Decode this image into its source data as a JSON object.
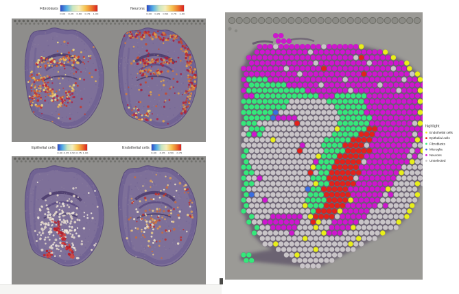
{
  "palette": {
    "left_block_bg": "#8e8d8b",
    "right_block_bg": "#9b9a96",
    "tissue_purple": "#7e7099",
    "fiducial_dot": "#6d6d66",
    "bottom_strip": "#f5f5f3"
  },
  "left_panels": {
    "colormap_stops": [
      "#2b47c6",
      "#53aee6",
      "#c8e6c0",
      "#f5eebb",
      "#f7c653",
      "#ee7d2e",
      "#d92120"
    ],
    "value_range": [
      0,
      1
    ],
    "panels": [
      {
        "title": "Fibroblasts",
        "colorbar_ticks": [
          "0.00",
          "0.25",
          "0.50",
          "0.75",
          "1.00"
        ]
      },
      {
        "title": "Neurons",
        "colorbar_ticks": [
          "0.00",
          "0.25",
          "0.50",
          "0.75",
          "1.00"
        ]
      },
      {
        "title": "Epithelial cells",
        "colorbar_ticks": [
          "0.00",
          "0.25",
          "0.50",
          "0.75",
          "1.00"
        ]
      },
      {
        "title": "Endothelial cells",
        "colorbar_ticks": [
          "0.00",
          "0.25",
          "0.50",
          "0.75"
        ]
      }
    ]
  },
  "right_panel": {
    "legend": {
      "title": "highlight",
      "items": [
        {
          "label": "Endothelial cells",
          "color": "#e8ef1a"
        },
        {
          "label": "Epithelial cells",
          "color": "#e4211a"
        },
        {
          "label": "Fibroblasts",
          "color": "#35e87b"
        },
        {
          "label": "Microglia",
          "color": "#3a6de0"
        },
        {
          "label": "Neurons",
          "color": "#cf16cf"
        },
        {
          "label": "Unselected",
          "color": "#c9c5c8"
        }
      ]
    }
  },
  "chart_data": [
    {
      "type": "heatmap",
      "subtype": "spatial_feature_overlay_panels",
      "title": "",
      "panels": [
        "Fibroblasts",
        "Neurons",
        "Epithelial cells",
        "Endothelial cells"
      ],
      "colorbar_ticks": [
        [
          "0.00",
          "0.25",
          "0.50",
          "0.75",
          "1.00"
        ],
        [
          "0.00",
          "0.25",
          "0.50",
          "0.75",
          "1.00"
        ],
        [
          "0.00",
          "0.25",
          "0.50",
          "0.75",
          "1.00"
        ],
        [
          "0.00",
          "0.25",
          "0.50",
          "0.75"
        ]
      ],
      "colormap_stops": [
        "#2b47c6",
        "#53aee6",
        "#c8e6c0",
        "#f5eebb",
        "#f7c653",
        "#ee7d2e",
        "#d92120"
      ],
      "value_range": [
        0,
        1
      ],
      "legend_position": "top"
    },
    {
      "type": "scatter",
      "subtype": "spatial_spot_category_map",
      "legend_title": "highlight",
      "legend_position": "right",
      "grid_on": false,
      "category_codes": {
        "n": "Neurons",
        "f": "Fibroblasts",
        "e": "Epithelial cells",
        "d": "Endothelial cells",
        "m": "Microglia",
        "u": "Unselected",
        ".": "empty"
      },
      "category_colors": {
        "n": "#cf16cf",
        "f": "#35e87b",
        "e": "#e4211a",
        "d": "#e8ef1a",
        "m": "#3a6de0",
        "u": "#c9c5c8"
      },
      "grid_rows": [
        "......nn..........................",
        "......nnn.........................",
        "...nnnunnnnnnnnunnnnnnd...........",
        "..nnnnnnnnnnunnnnnnnnnnnnnd.......",
        ".nnnnnnnnnnnnnnnnnnnnuennnnnd.....",
        ".nnnnnnnnnnnnunnnnnnnnnunnnnnnd...",
        "nnnnnnnnunnnnnnennnnnnnnnnnnunnd..",
        "nnnnnnnnnnunnnnnnnnnnnennnnnnnnud.",
        "nffffnnnnnnnnnnnnnnunnnnnnnnnnunnd",
        "nfffffffnnnnnnunnnnnnnnnnunnnnnnnn",
        "nfffffffffffnnnnnnnnunnnnnnnnunnnd",
        "nnffffffffffffnnnffffffnnnnnnnnnnn",
        "fffffffffuuuuuuufffffffnnnnnnnnnnd",
        "ffffffffuuuuuuuuuffffffnnnnnnnnnnn",
        "ffffffmuuuuuuuuuuufffffnnnnnnnnnnd",
        "fffffmnnnnuuuuuuuuffffffnnnnnnnnnn",
        "fffuuuuuuueuuuuuuuffffffnnnnnnnnud",
        "ufffuuuuuuuuuuuuudfffffeennnnnnnnn",
        "ufnfuuuuuuuuuuuuufffffeeennnnnnnun",
        "uuuuuduuuuuuuuufffffeeeennnnnnnndn",
        "uuuuuuuuuuunuuuffffeeeeunnnnnnnnuu",
        "fuuuuuuuuueuuuuffffeeeeennnnnnnund",
        "fuuuuuuuuuuuuudfffeeeeennnnnnnnunu",
        "fuuuuuuuuuuuunfffeeeeeunnnnnnnnduu",
        "ffuuuuuuuuuuudfffeeeeennnnnnnnuuuu",
        "ffuuuuuuuuuueuffeeeeeennnnnnnduuuu",
        "fuunuuuuuuuuufffeeeeeunnnnnnnuuuuu",
        "ffuuuuuuuuuuudffeeeeennnnnnnuuuudu",
        "fuuuuuuuuuuumffeeeeennnnnnnduuuuu.",
        "fmuuuuuuuuuufffeeeeennnnnnunuuuud.",
        "fuuunuuuuuuuffffeeeednnnnnuuuuuuu.",
        "fuuuuuuuuuudfffeeeennnnnnunuuuud..",
        "fuuuuuuuuuuuufeeeednnnnnuuuuuuud..",
        ".fuuunnnnnnudeeeeunnnnnuuuuuuud...",
        ".fuunnnnnnnuueduunnnnnuuuuuuud....",
        "..fuunnnnnuuuduunnnnduuuuuuuu.....",
        "..fuuuuuunuuuuudnnnuuuuuuud.......",
        "...uuuuuuuuduuuuuuuuuduuu.........",
        "....uuduuuuuuuuuuuuuduu...........",
        "......uuuuuuuduuuuuuu.............",
        "ff......uuduuuuuuuu...............",
        "ff.......uuuuuuuu.................",
        "...........uuuu..................."
      ]
    }
  ]
}
